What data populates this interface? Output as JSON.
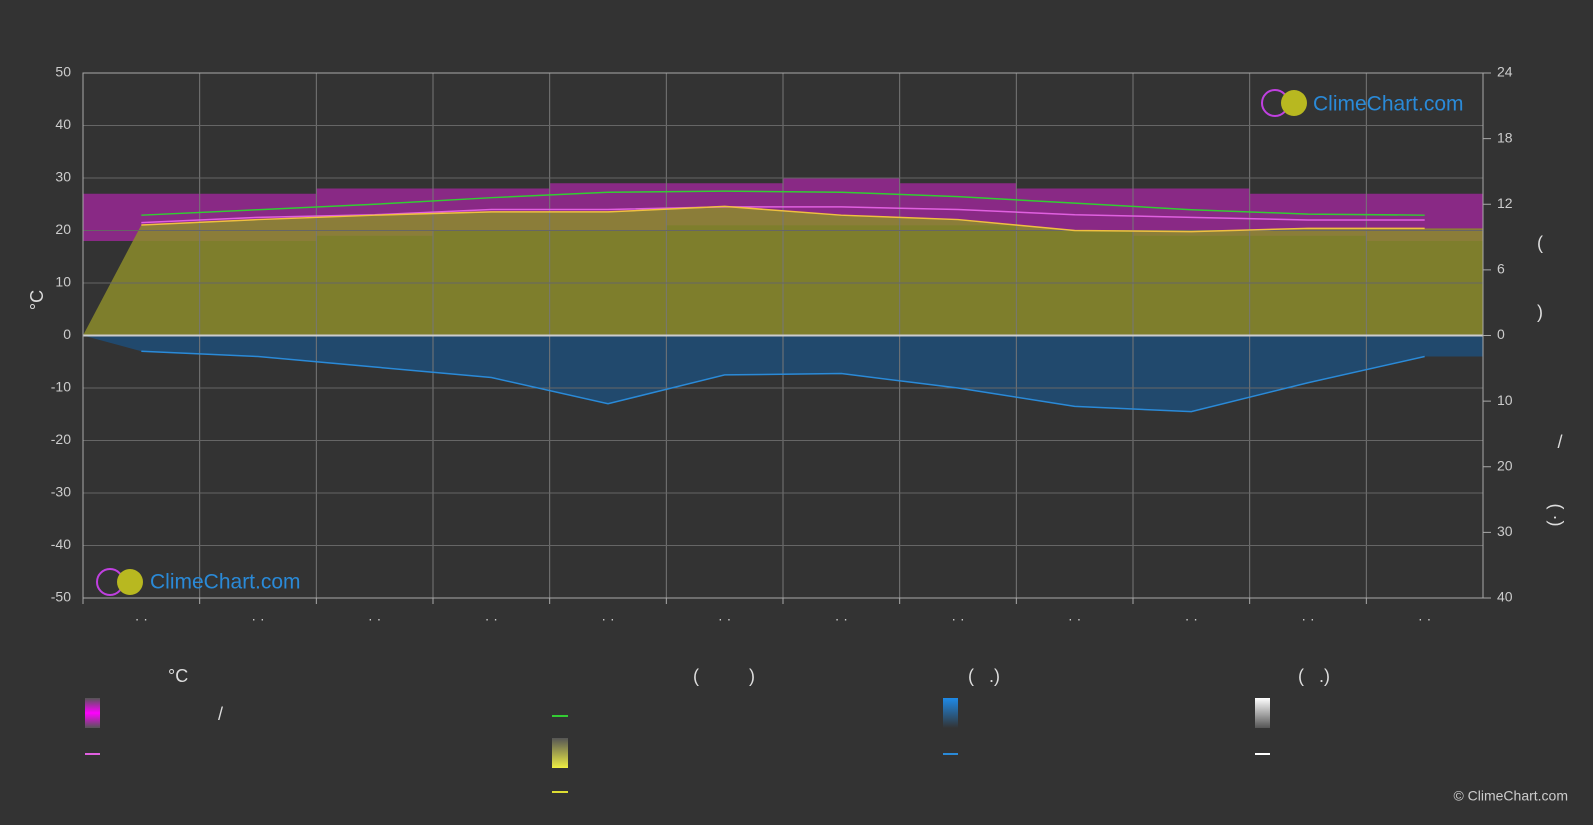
{
  "chart_data": {
    "type": "line",
    "y_label": "°C",
    "categories": [
      "· ·",
      "· ·",
      "· ·",
      "· ·",
      "· ·",
      "· ·",
      "· ·",
      "· ·",
      "· ·",
      "· ·",
      "· ·",
      "· ·"
    ],
    "ylim": [
      -50,
      50
    ],
    "yticks": [
      -50,
      -40,
      -30,
      -20,
      -10,
      0,
      10,
      20,
      30,
      40,
      50
    ],
    "y2lim": [
      0,
      24
    ],
    "y2ticks": [
      0,
      6,
      12,
      18,
      24
    ],
    "y3lim": [
      0,
      40
    ],
    "y3ticks": [
      10,
      20,
      30,
      40
    ],
    "grid": true,
    "temperature_band": {
      "color": "#d020c8",
      "high": [
        27,
        27,
        28,
        28,
        29,
        29,
        30,
        29,
        28,
        28,
        27,
        27
      ],
      "low": [
        18,
        18,
        19,
        20,
        20,
        21,
        21,
        21,
        20,
        19,
        19,
        18
      ]
    },
    "series": [
      {
        "color": "#e060e0",
        "axis": "y",
        "values": [
          21.5,
          22.5,
          23,
          24,
          24,
          24.5,
          24.5,
          24,
          23,
          22.5,
          22,
          22
        ]
      },
      {
        "color": "#33cc33",
        "axis": "y2",
        "values": [
          11.0,
          11.5,
          12.0,
          12.6,
          13.1,
          13.2,
          13.1,
          12.7,
          12.1,
          11.5,
          11.1,
          11.0
        ]
      },
      {
        "color": "#f0c040",
        "axis": "y2",
        "fill": "#8c8c2c",
        "values": [
          10.1,
          10.6,
          11.0,
          11.3,
          11.3,
          11.8,
          11.0,
          10.6,
          9.6,
          9.5,
          9.8,
          9.8
        ]
      },
      {
        "color": "#2a8ad8",
        "axis": "y3",
        "fill": "#1e4e78",
        "values": [
          2.4,
          3.2,
          4.8,
          6.4,
          10.4,
          6.0,
          5.8,
          8.0,
          10.8,
          11.6,
          7.2,
          3.2
        ]
      }
    ],
    "right_labels": [
      "(",
      ")",
      "/",
      "(·  )"
    ],
    "legend_headers": [
      "°C",
      "(          )",
      "(   .)",
      "(   .)"
    ],
    "legend_slash": "/",
    "watermark": "ClimeChart.com",
    "copyright": "© ClimeChart.com"
  }
}
